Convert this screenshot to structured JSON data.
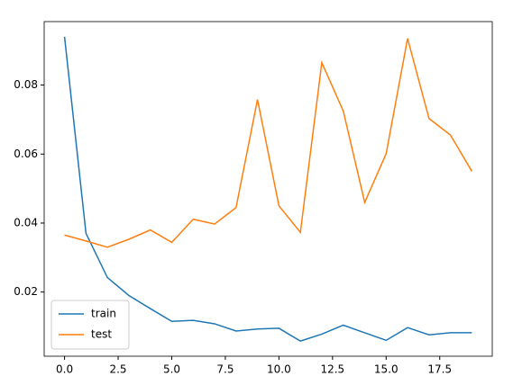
{
  "chart_data": {
    "type": "line",
    "x": [
      0,
      1,
      2,
      3,
      4,
      5,
      6,
      7,
      8,
      9,
      10,
      11,
      12,
      13,
      14,
      15,
      16,
      17,
      18,
      19
    ],
    "series": [
      {
        "name": "train",
        "color": "#1f77b4",
        "values": [
          0.094,
          0.037,
          0.0242,
          0.019,
          0.0152,
          0.0115,
          0.0118,
          0.0108,
          0.0087,
          0.0093,
          0.0095,
          0.0058,
          0.0078,
          0.0104,
          0.0082,
          0.006,
          0.0097,
          0.0076,
          0.0082,
          0.0082
        ]
      },
      {
        "name": "test",
        "color": "#ff7f0e",
        "values": [
          0.0365,
          0.0348,
          0.033,
          0.0353,
          0.038,
          0.0344,
          0.0411,
          0.0397,
          0.0445,
          0.0758,
          0.045,
          0.0373,
          0.0865,
          0.0725,
          0.046,
          0.0601,
          0.0935,
          0.0703,
          0.0655,
          0.055
        ]
      }
    ],
    "xlim": [
      -0.95,
      19.95
    ],
    "ylim": [
      0.0014,
      0.0984
    ],
    "xticks": [
      {
        "value": 0,
        "label": "0.0"
      },
      {
        "value": 2.5,
        "label": "2.5"
      },
      {
        "value": 5,
        "label": "5.0"
      },
      {
        "value": 7.5,
        "label": "7.5"
      },
      {
        "value": 10,
        "label": "10.0"
      },
      {
        "value": 12.5,
        "label": "12.5"
      },
      {
        "value": 15,
        "label": "15.0"
      },
      {
        "value": 17.5,
        "label": "17.5"
      }
    ],
    "yticks": [
      0.02,
      0.04,
      0.06,
      0.08
    ],
    "legend": "lower left"
  }
}
